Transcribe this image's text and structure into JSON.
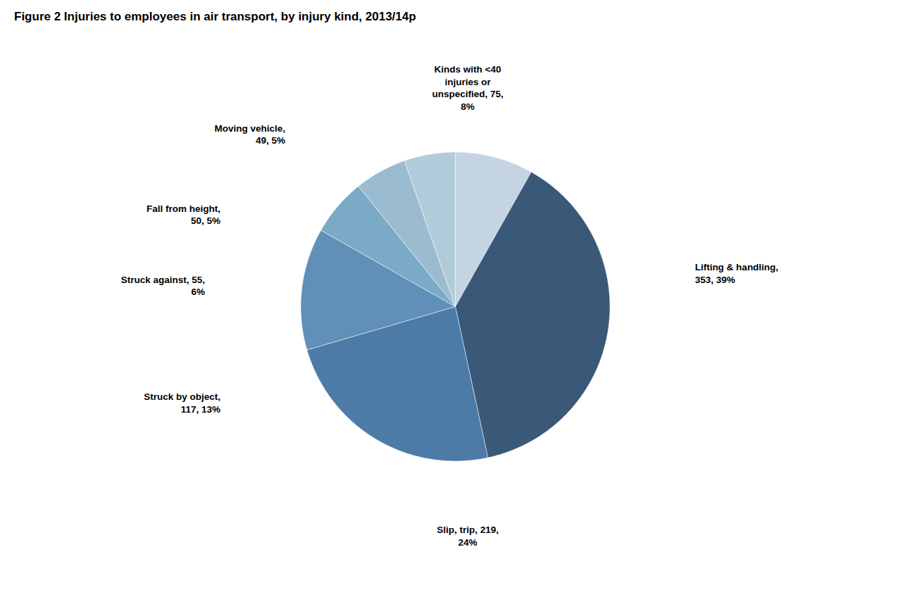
{
  "chart_data": {
    "type": "pie",
    "title": "Figure 2 Injuries to employees in air transport, by injury kind, 2013/14p",
    "categories": [
      "Kinds with <40\ninjuries or\nunspecified, 75,\n8%",
      "Lifting & handling,\n353, 39%",
      "Slip, trip, 219,\n24%",
      "Struck by object,\n117, 13%",
      "Struck against, 55,\n6%",
      "Fall from height,\n50, 5%",
      "Moving vehicle,\n49, 5%"
    ],
    "values": [
      75,
      353,
      219,
      117,
      55,
      50,
      49
    ],
    "colors": [
      "#C5D4E3",
      "#3A5878",
      "#4D7BA8",
      "#6090B8",
      "#7AAAC5",
      "#9BBCD0",
      "#B0CCDB"
    ]
  }
}
